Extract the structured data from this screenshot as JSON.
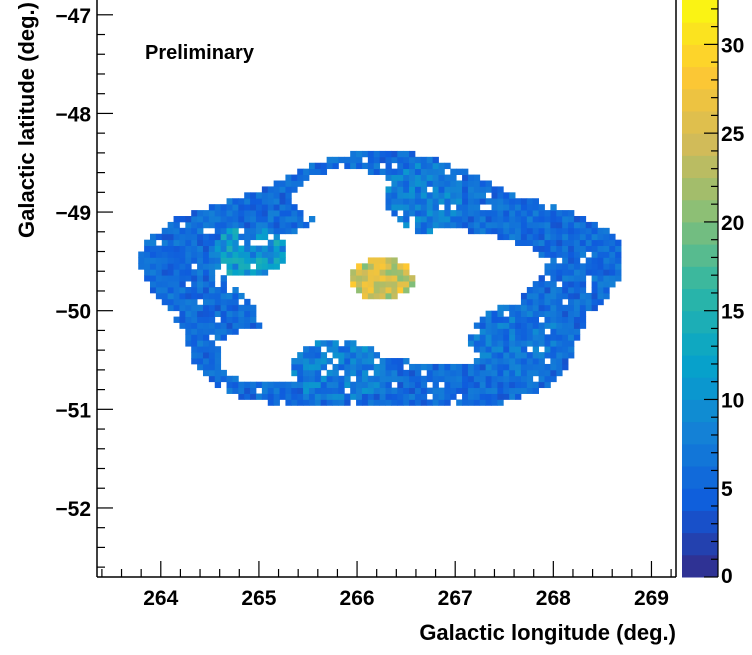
{
  "chart_data": {
    "type": "heatmap",
    "title": "",
    "annotation": "Preliminary",
    "xlabel": "Galactic longitude (deg.)",
    "ylabel": "Galactic latitude (deg.)",
    "xlim": [
      263.35,
      269.25
    ],
    "ylim": [
      -52.7,
      -46.85
    ],
    "x_ticks": [
      264,
      265,
      266,
      267,
      268,
      269
    ],
    "y_ticks": [
      -47,
      -48,
      -49,
      -50,
      -51,
      -52
    ],
    "z_ticks": [
      0,
      5,
      10,
      15,
      20,
      25,
      30
    ],
    "zlim": [
      0,
      32.5
    ],
    "grid": false,
    "colormap": [
      "#352a87",
      "#0f5cdd",
      "#1481d6",
      "#06a4ca",
      "#2eb7a4",
      "#87bf77",
      "#d1bb59",
      "#fec832",
      "#f9fb0e"
    ],
    "bin_size_deg": 0.06,
    "regions": [
      {
        "name": "center",
        "l": 266.25,
        "b": -49.68,
        "rl": 0.32,
        "rb": 0.21,
        "intensity": 25
      },
      {
        "name": "ring",
        "l": 266.25,
        "b": -49.75,
        "radius_l": 1.95,
        "radius_b": 1.05,
        "width_deg": 0.42,
        "intensity": 6
      },
      {
        "name": "ring-gap-upper-left",
        "l": 265.9,
        "b": -48.85,
        "rl": 0.55,
        "rb": 0.28,
        "intensity": 0
      },
      {
        "name": "ring-gap-right",
        "l": 267.3,
        "b": -49.9,
        "rl": 0.35,
        "rb": 0.45,
        "intensity": 0
      },
      {
        "name": "ring-gap-lower-left",
        "l": 265.05,
        "b": -50.45,
        "rl": 0.45,
        "rb": 0.3,
        "intensity": 0
      },
      {
        "name": "inner-blob-lower",
        "l": 265.8,
        "b": -50.6,
        "rl": 0.5,
        "rb": 0.3,
        "intensity": 8
      },
      {
        "name": "inner-blob-upper",
        "l": 266.7,
        "b": -48.85,
        "rl": 0.4,
        "rb": 0.35,
        "intensity": 8
      },
      {
        "name": "inner-blob-right",
        "l": 267.6,
        "b": -50.3,
        "rl": 0.45,
        "rb": 0.35,
        "intensity": 7
      },
      {
        "name": "left-hotspot",
        "l": 264.9,
        "b": -49.4,
        "rl": 0.4,
        "rb": 0.25,
        "intensity": 11
      }
    ]
  }
}
